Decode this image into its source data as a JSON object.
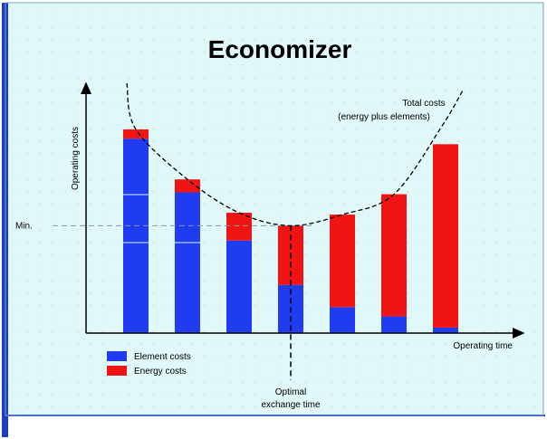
{
  "chart_data": {
    "type": "bar",
    "stacked": true,
    "title": "Economizer",
    "ylabel": "Operating costs",
    "xlabel": "Operating time",
    "categories": [
      "",
      "",
      "",
      "",
      "",
      "",
      ""
    ],
    "series": [
      {
        "name": "Element costs",
        "color": "#1f3cf0",
        "values": [
          210,
          152,
          100,
          52,
          28,
          18,
          6
        ]
      },
      {
        "name": "Energy costs",
        "color": "#f01414",
        "values": [
          10,
          14,
          30,
          64,
          100,
          132,
          198
        ]
      }
    ],
    "ylim": [
      0,
      262
    ],
    "minimum_label": "Min.",
    "minimum_value": 116,
    "curve_label_line1": "Total costs",
    "curve_label_line2": "(energy plus elements)",
    "optimal_label_line1": "Optimal",
    "optimal_label_line2": "exchange time",
    "legend_position": "bottom-left",
    "grid": false,
    "background": "#e0f8f8",
    "border_color": "#1c3cc8"
  }
}
